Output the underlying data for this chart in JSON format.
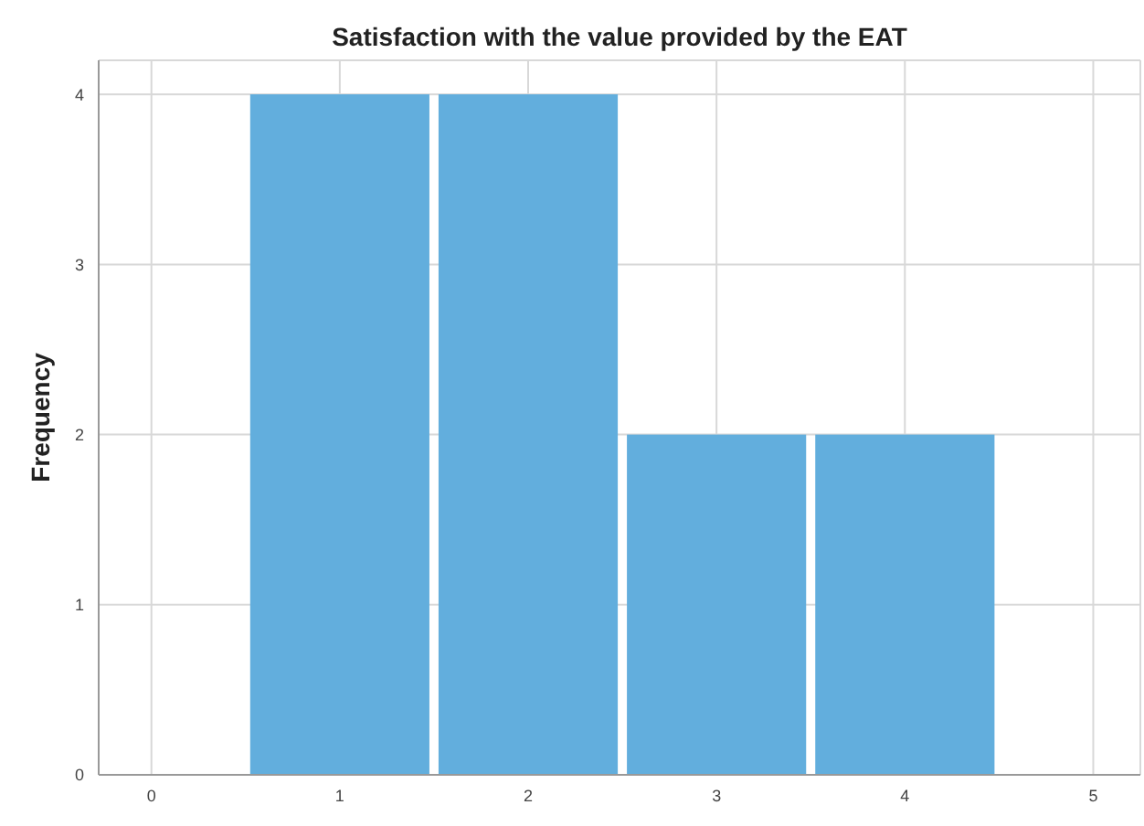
{
  "chart_data": {
    "type": "histogram",
    "title": "Satisfaction with the value provided by the EAT",
    "ylabel": "Frequency",
    "bins": [
      0.5,
      1.5,
      2.5,
      3.5,
      4.5
    ],
    "values": [
      4,
      4,
      2,
      2
    ],
    "color": "#62aedd",
    "xlim": [
      -0.28,
      5.25
    ],
    "xticks": [
      0,
      1,
      2,
      3,
      4,
      5
    ],
    "ylim": [
      0,
      4.2
    ],
    "yticks": [
      0,
      1,
      2,
      3,
      4
    ],
    "grid": true
  }
}
